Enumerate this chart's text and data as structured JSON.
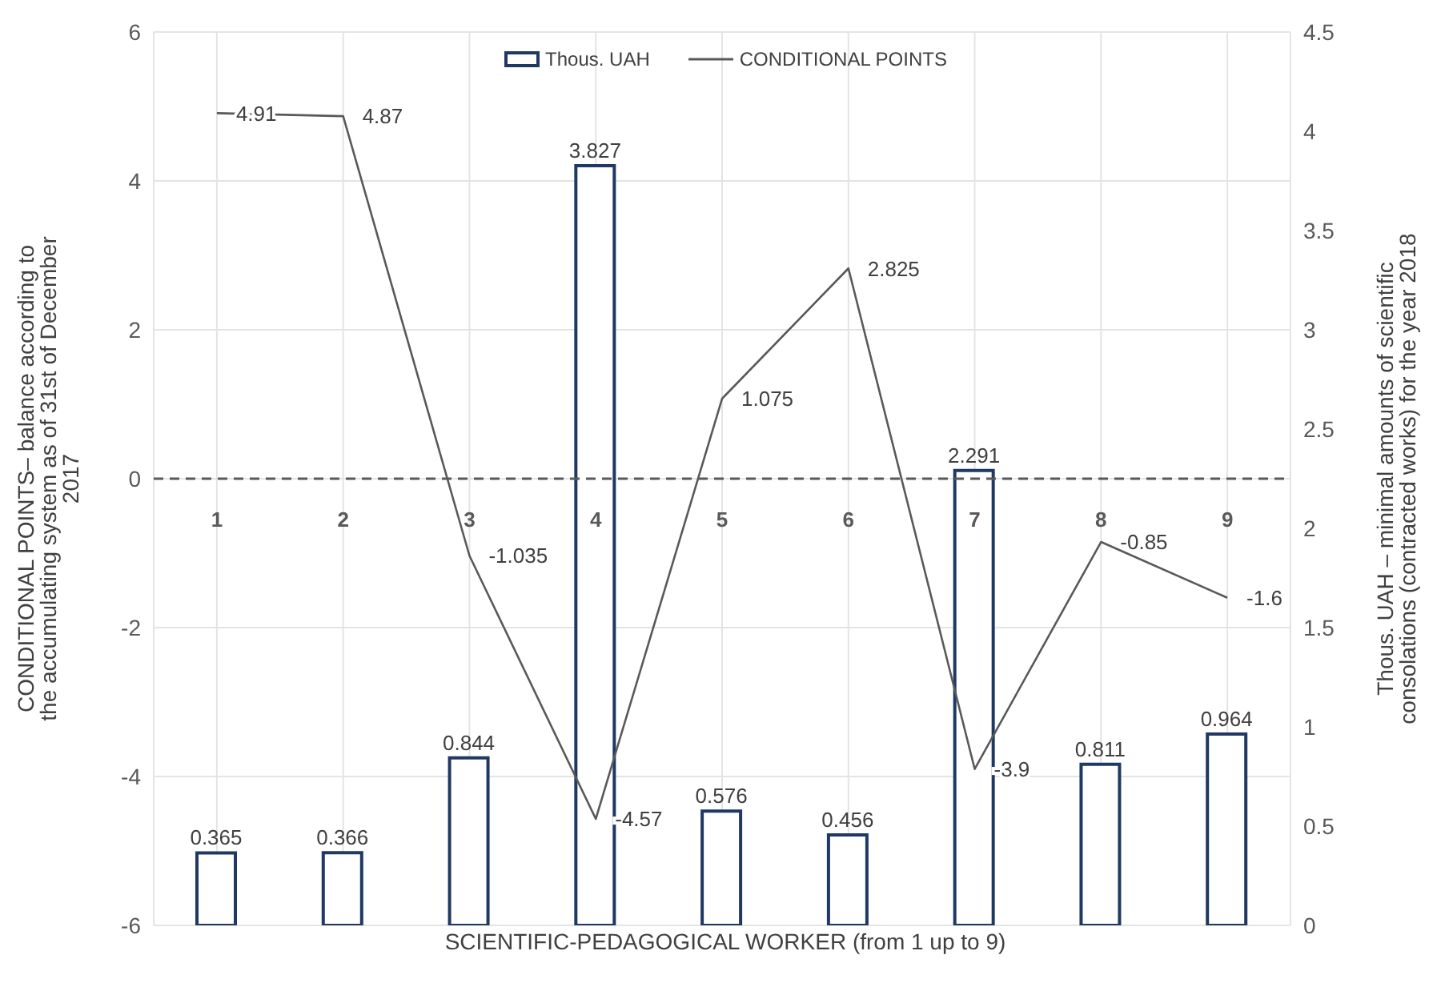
{
  "chart_data": {
    "type": "bar",
    "xlabel": "SCIENTIFIC-PEDAGOGICAL WORKER (from 1 up to 9)",
    "ylabel": "CONDITIONAL POINTS– balance according to the accumulating system as of 31st of December 2017",
    "y2label": "Thous. UAH – minimal amounts of scientific consolations (contracted works) for the year 2018",
    "categories": [
      "1",
      "2",
      "3",
      "4",
      "5",
      "6",
      "7",
      "8",
      "9"
    ],
    "series": [
      {
        "name": "Thous. UAH",
        "axis": "y2",
        "color": "#1f3864",
        "values": [
          0.365,
          0.366,
          0.844,
          3.827,
          0.576,
          0.456,
          2.291,
          0.811,
          0.964
        ]
      },
      {
        "name": "CONDITIONAL POINTS",
        "type": "line",
        "color": "#595959",
        "values": [
          4.91,
          4.87,
          -1.035,
          -4.57,
          1.075,
          2.825,
          -3.9,
          -0.85,
          -1.6
        ]
      }
    ],
    "ylim": [
      -6,
      6
    ],
    "yticks": [
      -6,
      -4,
      -2,
      0,
      2,
      4,
      6
    ],
    "y2lim": [
      0,
      4.5
    ],
    "y2ticks": [
      0,
      0.5,
      1,
      1.5,
      2,
      2.5,
      3,
      3.5,
      4,
      4.5
    ],
    "ref_lines": [
      {
        "axis": "y",
        "value": 0,
        "line_style": "dashed",
        "color": "#595959"
      }
    ],
    "data_labels": true,
    "legend": "top",
    "grid": true,
    "marker": "none",
    "line_style": "solid"
  }
}
